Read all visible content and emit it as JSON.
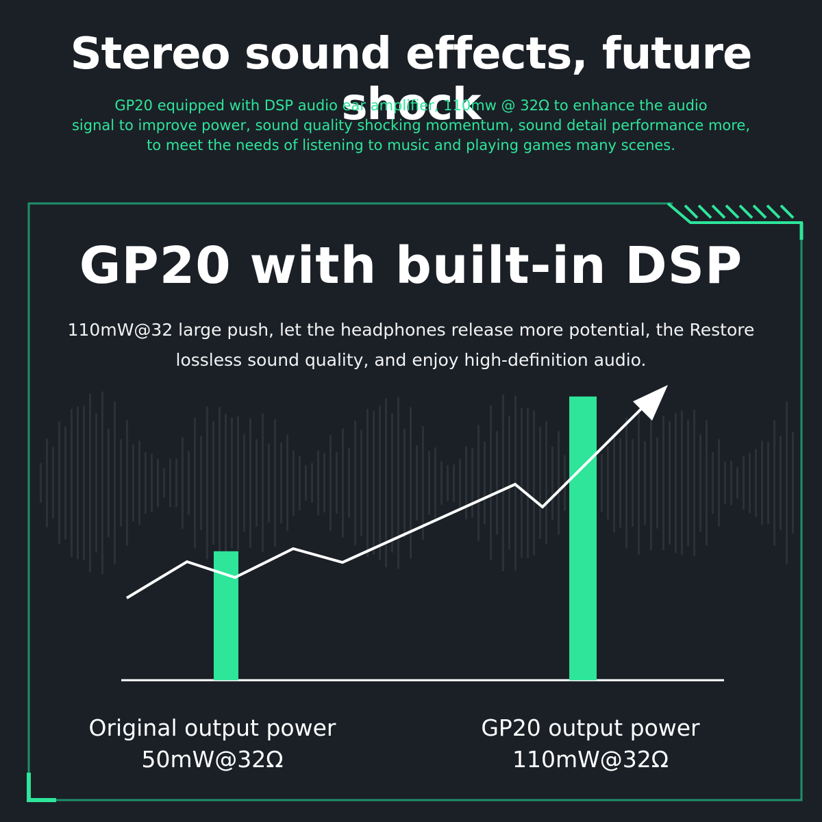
{
  "header": {
    "title": "Stereo sound effects, future shock",
    "subtitle_lines": [
      "GP20 equipped with DSP audio ear amplifier, 110mw @ 32Ω to enhance the audio",
      "signal to improve power, sound quality shocking momentum, sound detail performance more,",
      "to meet the needs of listening to music and playing games many scenes."
    ]
  },
  "panel": {
    "title": "GP20 with built-in DSP",
    "description_lines": [
      "110mW@32 large push, let the headphones release more potential, the Restore",
      "lossless sound quality, and enjoy high-definition audio."
    ]
  },
  "colors": {
    "background": "#1b2027",
    "accent": "#2ee59a",
    "text": "#ffffff",
    "waveform": "#3a4047"
  },
  "chart_data": {
    "type": "bar",
    "categories": [
      "Original output power",
      "GP20 output power"
    ],
    "value_labels": [
      "50mW@32Ω",
      "110mW@32Ω"
    ],
    "values": [
      50,
      110
    ],
    "unit": "mW",
    "ylim": [
      0,
      115
    ],
    "grid": false,
    "trend_arrow": true
  }
}
